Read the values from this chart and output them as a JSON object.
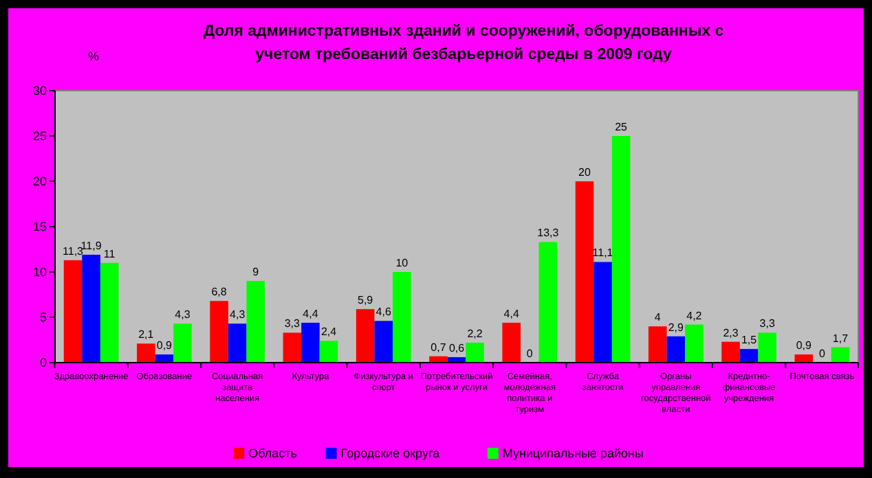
{
  "chart_data": {
    "type": "bar",
    "title": "Доля административных зданий и сооружений, оборудованных с учетом требований безбарьерной среды в 2009 году",
    "ylabel": "%",
    "categories": [
      "Здравоохранение",
      "Образование",
      "Социальная защита населения",
      "Культура",
      "Физкультура и спорт",
      "Потребительский рынок и услуги",
      "Семейная, молодежная политика и туризм",
      "Служба занятости",
      "Органы управления государственной власти",
      "Кредитно-финансовые учреждения",
      "Почтовая связь"
    ],
    "series": [
      {
        "name": "Область",
        "color": "#ff0000",
        "values": [
          11.3,
          2.1,
          6.8,
          3.3,
          5.9,
          0.7,
          4.4,
          20,
          4,
          2.3,
          0.9
        ],
        "value_labels": [
          "11,3",
          "2,1",
          "6,8",
          "3,3",
          "5,9",
          "0,7",
          "4,4",
          "20",
          "4",
          "2,3",
          "0,9"
        ]
      },
      {
        "name": "Городские округа",
        "color": "#0000ff",
        "values": [
          11.9,
          0.9,
          4.3,
          4.4,
          4.6,
          0.6,
          0,
          11.1,
          2.9,
          1.5,
          0
        ],
        "value_labels": [
          "11,9",
          "0,9",
          "4,3",
          "4,4",
          "4,6",
          "0,6",
          "0",
          "11,1",
          "2,9",
          "1,5",
          "0"
        ]
      },
      {
        "name": "Муниципальные районы",
        "color": "#00ff00",
        "values": [
          11,
          4.3,
          9,
          2.4,
          10,
          2.2,
          13.3,
          25,
          4.2,
          3.3,
          1.7
        ],
        "value_labels": [
          "11",
          "4,3",
          "9",
          "2,4",
          "10",
          "2,2",
          "13,3",
          "25",
          "4,2",
          "3,3",
          "1,7"
        ]
      }
    ],
    "ylim": [
      0,
      30
    ],
    "yticks": [
      0,
      5,
      10,
      15,
      20,
      25,
      30
    ],
    "grid": false,
    "legend": "bottom"
  }
}
